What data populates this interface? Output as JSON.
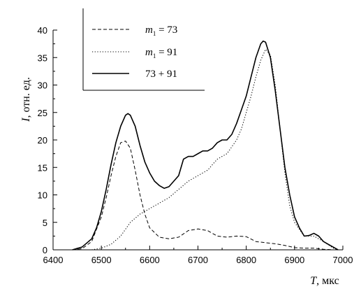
{
  "chart_data": {
    "type": "line",
    "xlabel_symbol": "T",
    "xlabel_unit": ", мкс",
    "ylabel_symbol": "I",
    "ylabel_unit": ", отн. ед.",
    "xlim": [
      6400,
      7000
    ],
    "ylim": [
      0,
      40
    ],
    "x_ticks": [
      6400,
      6500,
      6600,
      6700,
      6800,
      6900,
      7000
    ],
    "y_ticks": [
      0,
      5,
      10,
      15,
      20,
      25,
      30,
      35,
      40
    ],
    "legend_placement": "top-left",
    "series": [
      {
        "name": "m₁ = 73",
        "legend_symbol": "m",
        "legend_sub": "1",
        "legend_rest": " = 73",
        "style": "dashed",
        "x": [
          6440,
          6460,
          6480,
          6500,
          6510,
          6520,
          6530,
          6540,
          6550,
          6560,
          6570,
          6580,
          6590,
          6600,
          6620,
          6640,
          6660,
          6680,
          6700,
          6720,
          6740,
          6760,
          6780,
          6800,
          6820,
          6840,
          6860,
          6880,
          6900,
          6920,
          6940,
          6960,
          6980,
          6990
        ],
        "y": [
          0,
          0.2,
          1.5,
          6,
          9.5,
          13.5,
          17,
          19.5,
          19.8,
          18.5,
          14.5,
          10,
          6.5,
          4,
          2.3,
          2,
          2.3,
          3.5,
          3.8,
          3.5,
          2.5,
          2.3,
          2.5,
          2.4,
          1.5,
          1.3,
          1.1,
          0.8,
          0.4,
          0.3,
          0.3,
          0.1,
          0,
          0
        ]
      },
      {
        "name": "m₁ = 91",
        "legend_symbol": "m",
        "legend_sub": "1",
        "legend_rest": " = 91",
        "style": "dotted",
        "x": [
          6480,
          6500,
          6520,
          6540,
          6560,
          6580,
          6600,
          6620,
          6640,
          6660,
          6680,
          6700,
          6720,
          6740,
          6760,
          6780,
          6790,
          6800,
          6810,
          6820,
          6830,
          6840,
          6850,
          6860,
          6870,
          6880,
          6890,
          6900,
          6920,
          6940,
          6960,
          6980,
          6990
        ],
        "y": [
          0,
          0.3,
          1,
          2.5,
          5,
          6.5,
          7.5,
          8.5,
          9.5,
          11,
          12.5,
          13.5,
          14.5,
          16.5,
          17.5,
          20,
          22,
          25,
          28,
          31.5,
          34.5,
          36.5,
          35.5,
          30,
          22,
          14,
          8,
          5,
          2.5,
          2.5,
          1.5,
          0.3,
          0
        ]
      },
      {
        "name": "73 + 91",
        "legend_label": "73 + 91",
        "style": "solid",
        "x": [
          6440,
          6460,
          6480,
          6490,
          6500,
          6510,
          6520,
          6530,
          6540,
          6550,
          6555,
          6560,
          6570,
          6580,
          6590,
          6600,
          6610,
          6620,
          6630,
          6640,
          6650,
          6660,
          6670,
          6680,
          6690,
          6700,
          6710,
          6720,
          6730,
          6740,
          6750,
          6760,
          6770,
          6780,
          6790,
          6800,
          6810,
          6820,
          6830,
          6835,
          6840,
          6850,
          6860,
          6870,
          6880,
          6890,
          6900,
          6910,
          6920,
          6930,
          6940,
          6950,
          6960,
          6970,
          6980,
          6990
        ],
        "y": [
          0,
          0.5,
          2,
          4,
          7,
          11,
          15.5,
          19.5,
          22.5,
          24.5,
          24.8,
          24.5,
          22.5,
          19,
          16,
          14,
          12.5,
          11.7,
          11.2,
          11.5,
          12.5,
          13.5,
          16.5,
          17,
          17,
          17.5,
          18,
          18,
          18.5,
          19.5,
          20,
          20,
          21,
          23,
          25.5,
          28,
          31.5,
          35,
          37.5,
          38,
          37.8,
          35,
          29,
          22,
          15,
          10,
          6,
          4,
          2.5,
          2.6,
          3,
          2.5,
          1.5,
          1,
          0.5,
          0
        ]
      }
    ]
  }
}
